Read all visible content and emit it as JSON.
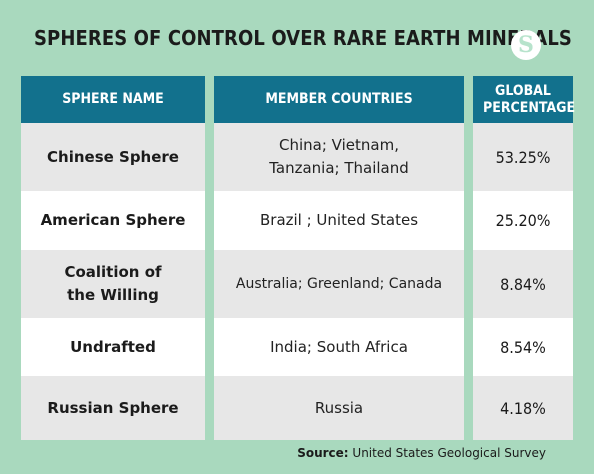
{
  "title": "SPHERES OF CONTROL OVER RARE EARTH MINERALS",
  "logo_letter": "S",
  "colors": {
    "background": "#a9d9be",
    "header": "#12718d",
    "row_shade": "#e7e7e7",
    "row_white": "#ffffff"
  },
  "table": {
    "headers": [
      "SPHERE NAME",
      "MEMBER COUNTRIES",
      "GLOBAL PERCENTAGE"
    ],
    "rows": [
      {
        "sphere": "Chinese Sphere",
        "members": "China; Vietnam, Tanzania; Thailand",
        "percentage": "53.25%"
      },
      {
        "sphere": "American Sphere",
        "members": "Brazil ; United States",
        "percentage": "25.20%"
      },
      {
        "sphere": "Coalition of the Willing",
        "members": "Australia; Greenland; Canada",
        "percentage": "8.84%"
      },
      {
        "sphere": "Undrafted",
        "members": "India; South Africa",
        "percentage": "8.54%"
      },
      {
        "sphere": "Russian Sphere",
        "members": "Russia",
        "percentage": "4.18%"
      }
    ]
  },
  "source": {
    "label": "Source:",
    "text": "United States Geological Survey"
  }
}
